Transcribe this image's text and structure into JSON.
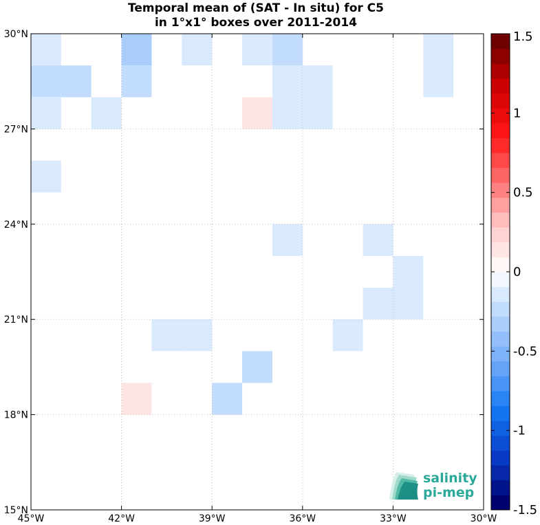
{
  "chart_data": {
    "type": "heatmap",
    "title": "Temporal mean of (SAT - In situ) for C5",
    "subtitle": "in 1°x1° boxes over 2011-2014",
    "xlabel": "",
    "ylabel": "",
    "xlim": [
      -45,
      -30
    ],
    "ylim": [
      15,
      30
    ],
    "grid": true,
    "x_ticks": [
      {
        "value": -45,
        "label": "45°W"
      },
      {
        "value": -42,
        "label": "42°W"
      },
      {
        "value": -39,
        "label": "39°W"
      },
      {
        "value": -36,
        "label": "36°W"
      },
      {
        "value": -33,
        "label": "33°W"
      },
      {
        "value": -30,
        "label": "30°W"
      }
    ],
    "y_ticks": [
      {
        "value": 30,
        "label": "30°N"
      },
      {
        "value": 27,
        "label": "27°N"
      },
      {
        "value": 24,
        "label": "24°N"
      },
      {
        "value": 21,
        "label": "21°N"
      },
      {
        "value": 18,
        "label": "18°N"
      },
      {
        "value": 15,
        "label": "15°N"
      }
    ],
    "colorbar": {
      "min": -1.5,
      "max": 1.5,
      "levels": 32,
      "ticks": [
        {
          "value": 1.5,
          "label": "1.5"
        },
        {
          "value": 1,
          "label": "1"
        },
        {
          "value": 0.5,
          "label": "0.5"
        },
        {
          "value": 0,
          "label": "0"
        },
        {
          "value": -0.5,
          "label": "-0.5"
        },
        {
          "value": -1,
          "label": "-1"
        },
        {
          "value": -1.5,
          "label": "-1.5"
        }
      ]
    },
    "cells": [
      {
        "lon": -45,
        "lat": 29,
        "value": -0.1
      },
      {
        "lon": -42,
        "lat": 29,
        "value": -0.35
      },
      {
        "lon": -40,
        "lat": 29,
        "value": -0.1
      },
      {
        "lon": -38,
        "lat": 29,
        "value": -0.1
      },
      {
        "lon": -37,
        "lat": 29,
        "value": -0.25
      },
      {
        "lon": -32,
        "lat": 29,
        "value": -0.1
      },
      {
        "lon": -45,
        "lat": 28,
        "value": -0.2
      },
      {
        "lon": -44,
        "lat": 28,
        "value": -0.2
      },
      {
        "lon": -42,
        "lat": 28,
        "value": -0.2
      },
      {
        "lon": -37,
        "lat": 28,
        "value": -0.1
      },
      {
        "lon": -36,
        "lat": 28,
        "value": -0.1
      },
      {
        "lon": -32,
        "lat": 28,
        "value": -0.1
      },
      {
        "lon": -45,
        "lat": 27,
        "value": -0.1
      },
      {
        "lon": -43,
        "lat": 27,
        "value": -0.1
      },
      {
        "lon": -38,
        "lat": 27,
        "value": 0.15
      },
      {
        "lon": -37,
        "lat": 27,
        "value": -0.1
      },
      {
        "lon": -36,
        "lat": 27,
        "value": -0.1
      },
      {
        "lon": -45,
        "lat": 25,
        "value": -0.1
      },
      {
        "lon": -37,
        "lat": 23,
        "value": -0.1
      },
      {
        "lon": -34,
        "lat": 23,
        "value": -0.1
      },
      {
        "lon": -33,
        "lat": 22,
        "value": -0.1
      },
      {
        "lon": -34,
        "lat": 21,
        "value": -0.1
      },
      {
        "lon": -33,
        "lat": 21,
        "value": -0.1
      },
      {
        "lon": -41,
        "lat": 20,
        "value": -0.1
      },
      {
        "lon": -40,
        "lat": 20,
        "value": -0.1
      },
      {
        "lon": -35,
        "lat": 20,
        "value": -0.1
      },
      {
        "lon": -38,
        "lat": 19,
        "value": -0.2
      },
      {
        "lon": -39,
        "lat": 18,
        "value": -0.2
      },
      {
        "lon": -42,
        "lat": 18,
        "value": 0.15
      }
    ]
  },
  "logo": {
    "line1": "salinity",
    "line2": "pi-mep",
    "color": "#2aa89a"
  }
}
